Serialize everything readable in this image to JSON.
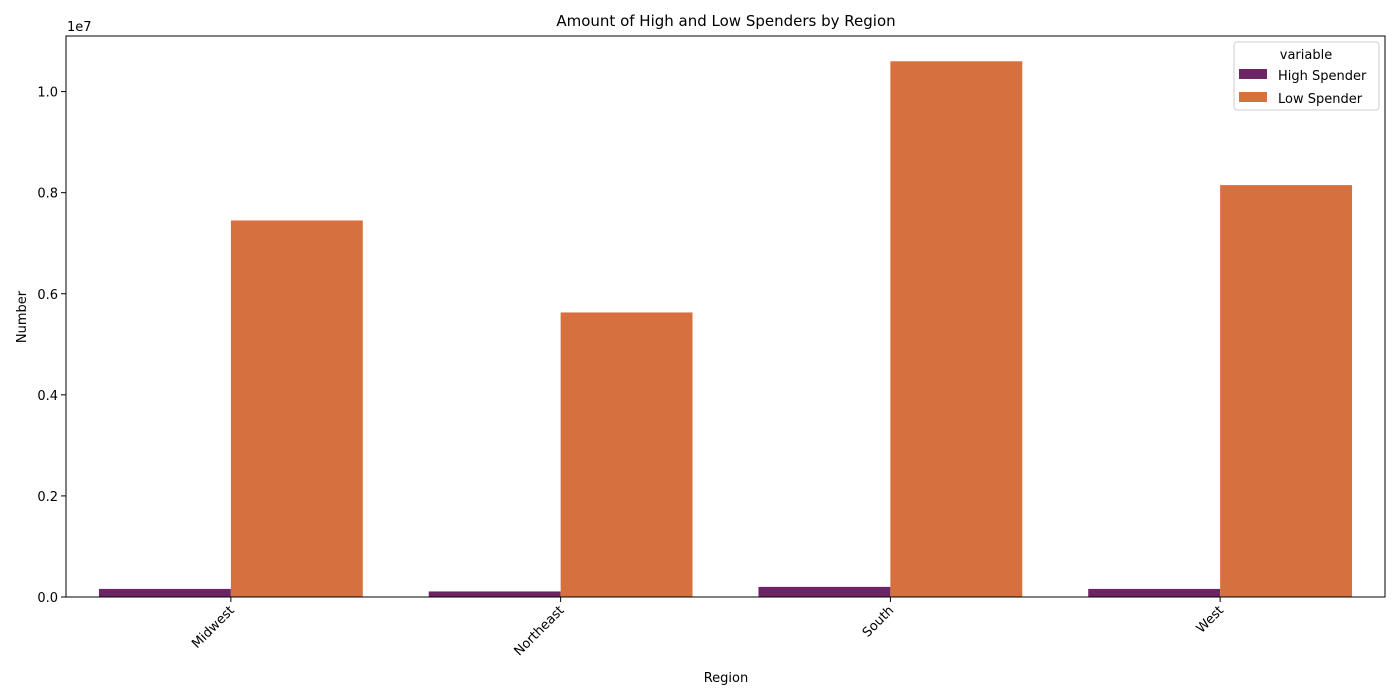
{
  "chart_data": {
    "type": "bar",
    "title": "Amount of High and Low Spenders by Region",
    "xlabel": "Region",
    "ylabel": "Number",
    "offset_label": "1e7",
    "categories": [
      "Midwest",
      "Northeast",
      "South",
      "West"
    ],
    "series": [
      {
        "name": "High Spender",
        "color": "#6d2466",
        "values": [
          160000,
          110000,
          200000,
          160000
        ]
      },
      {
        "name": "Low Spender",
        "color": "#d6713f",
        "values": [
          7450000,
          5630000,
          10600000,
          8150000
        ]
      }
    ],
    "ylim": [
      0,
      11100000
    ],
    "yticks": [
      0,
      2000000,
      4000000,
      6000000,
      8000000,
      10000000
    ],
    "ytick_labels": [
      "0.0",
      "0.2",
      "0.4",
      "0.6",
      "0.8",
      "1.0"
    ],
    "legend": {
      "title": "variable",
      "position": "top-right"
    },
    "grid": false
  }
}
